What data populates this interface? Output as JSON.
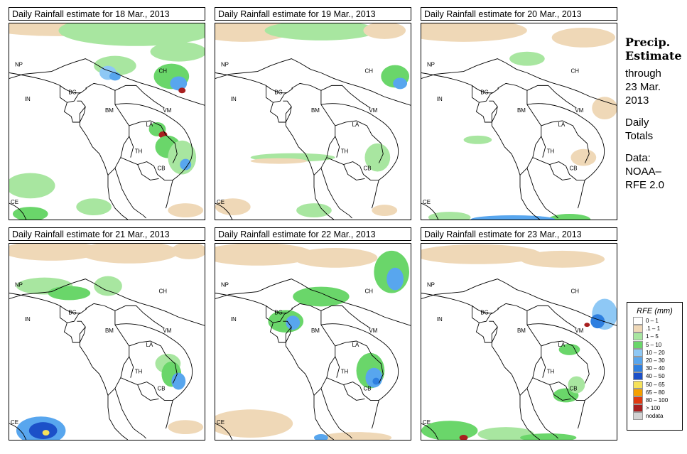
{
  "panels": [
    {
      "title": "Daily Rainfall estimate for  18 Mar., 2013"
    },
    {
      "title": "Daily Rainfall estimate for  19 Mar., 2013"
    },
    {
      "title": "Daily Rainfall estimate for  20 Mar., 2013"
    },
    {
      "title": "Daily Rainfall estimate for  21 Mar., 2013"
    },
    {
      "title": "Daily Rainfall estimate for  22 Mar., 2013"
    },
    {
      "title": "Daily Rainfall estimate for  23 Mar., 2013"
    }
  ],
  "country_labels": {
    "NP": "NP",
    "CH": "CH",
    "IN": "IN",
    "BG": "BG",
    "BM": "BM",
    "VM": "VM",
    "LA": "LA",
    "TH": "TH",
    "CB": "CB",
    "CE": "CE"
  },
  "sidebar": {
    "title_1": "Precip.",
    "title_2": "Estimate",
    "line_1": "through",
    "line_2": "23 Mar.",
    "line_3": "2013",
    "line_4": "Daily",
    "line_5": "Totals",
    "line_6": "Data:",
    "line_7": "NOAA–",
    "line_8": "RFE 2.0"
  },
  "legend": {
    "title": "RFE (mm)",
    "items": [
      {
        "label": "0 – 1",
        "color": "#ffffff"
      },
      {
        "label": ".1 – 1",
        "color": "#efd8b7"
      },
      {
        "label": "1 – 5",
        "color": "#a8e6a0"
      },
      {
        "label": "5 – 10",
        "color": "#6ad66a"
      },
      {
        "label": "10 – 20",
        "color": "#8ec8f5"
      },
      {
        "label": "20 – 30",
        "color": "#58a6ee"
      },
      {
        "label": "30 – 40",
        "color": "#2e7fe0"
      },
      {
        "label": "40 – 50",
        "color": "#1c50c8"
      },
      {
        "label": "50 – 65",
        "color": "#f5e15a"
      },
      {
        "label": "65 – 80",
        "color": "#f5a000"
      },
      {
        "label": "80 – 100",
        "color": "#e03a10"
      },
      {
        "label": "> 100",
        "color": "#a81f1f"
      },
      {
        "label": "nodata",
        "color": "#d2d2d2"
      }
    ]
  }
}
